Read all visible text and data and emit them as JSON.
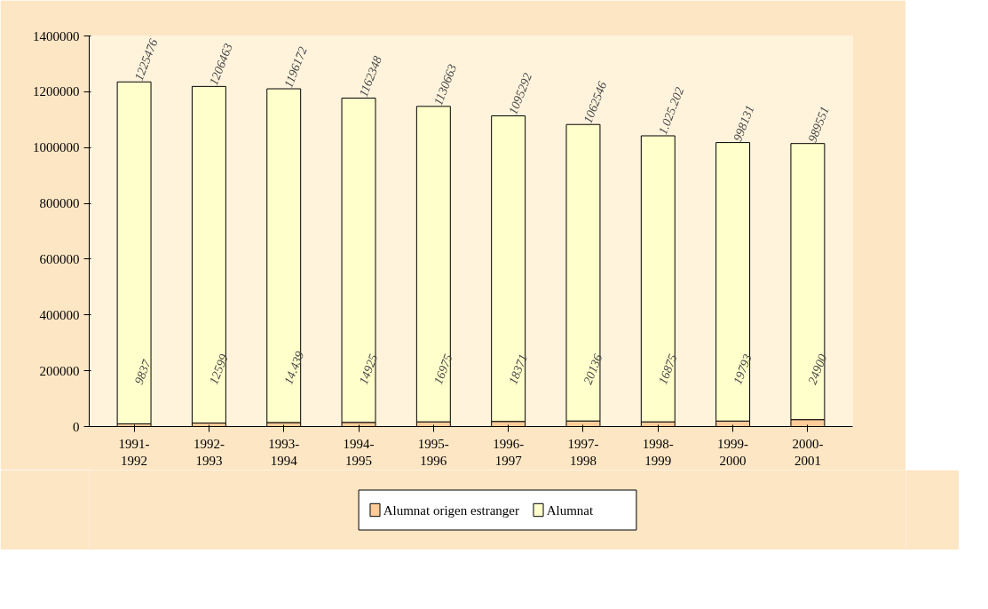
{
  "chart_data": {
    "type": "bar",
    "stacked": true,
    "categories": [
      "1991-1992",
      "1992-1993",
      "1993-1994",
      "1994-1995",
      "1995-1996",
      "1996-1997",
      "1997-1998",
      "1998-1999",
      "1999-2000",
      "2000-2001"
    ],
    "series": [
      {
        "name": "Alumnat origen estranger",
        "color": "#ffcc99",
        "values": [
          9837,
          12599,
          14439,
          14925,
          16975,
          18371,
          20136,
          16875,
          19793,
          24900
        ],
        "value_labels": [
          "9837",
          "12599",
          "14.439",
          "14925",
          "16975",
          "18371",
          "20136",
          "16875",
          "19793",
          "24900"
        ]
      },
      {
        "name": "Alumnat",
        "color": "#ffffcc",
        "values": [
          1225476,
          1206463,
          1196172,
          1162348,
          1130663,
          1095292,
          1062546,
          1025202,
          998131,
          989551
        ],
        "value_labels": [
          "1225476",
          "1206463",
          "1196172",
          "1162348",
          "1130663",
          "1095292",
          "1062546",
          "1.025.202",
          "998131",
          "989551"
        ]
      }
    ],
    "ylim": [
      0,
      1400000
    ],
    "yticks": [
      0,
      200000,
      400000,
      600000,
      800000,
      1000000,
      1200000,
      1400000
    ],
    "grid": false,
    "legend": "bottom"
  }
}
